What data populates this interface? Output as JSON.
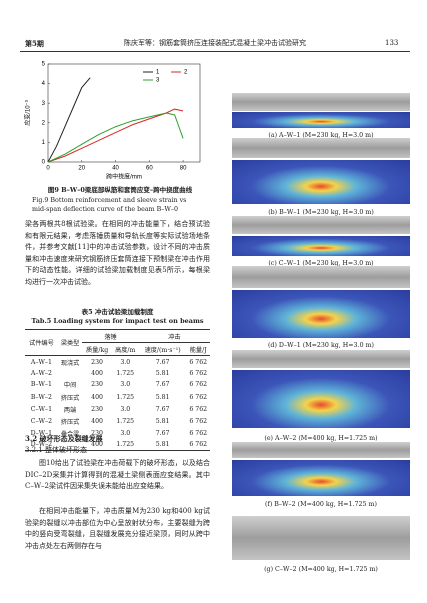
{
  "header": {
    "issue": "第5期",
    "running_title": "陈庆军等：钢筋套筒挤压连接装配式混凝土梁冲击试验研究",
    "page": "133"
  },
  "figure9": {
    "chart_data": {
      "type": "line",
      "xlabel": "跨中挠度/mm",
      "ylabel": "应变/10⁻³",
      "xlim": [
        0,
        90
      ],
      "xticks": [
        0,
        20,
        40,
        60,
        80
      ],
      "ylim": [
        0,
        5
      ],
      "yticks": [
        0,
        1,
        2,
        3,
        4,
        5
      ],
      "series": [
        {
          "name": "1",
          "color": "#222222",
          "x": [
            0,
            5,
            10,
            15,
            20,
            25
          ],
          "values": [
            0,
            0.8,
            1.8,
            2.8,
            3.8,
            4.3
          ]
        },
        {
          "name": "2",
          "color": "#d62728",
          "x": [
            0,
            10,
            20,
            30,
            40,
            50,
            60,
            70,
            75,
            80
          ],
          "values": [
            0,
            0.3,
            0.7,
            1.1,
            1.5,
            1.9,
            2.2,
            2.5,
            2.7,
            2.6
          ]
        },
        {
          "name": "3",
          "color": "#2ca02c",
          "x": [
            0,
            10,
            20,
            30,
            40,
            50,
            60,
            70,
            75,
            80
          ],
          "values": [
            0,
            0.4,
            0.9,
            1.4,
            1.8,
            2.1,
            2.3,
            2.5,
            2.4,
            1.2
          ]
        }
      ]
    },
    "caption_zh": "图9  B–W–0梁底部纵筋和套筒应变–跨中挠度曲线",
    "caption_en": "Fig.9  Bottom reinforcement and sleeve strain vs mid-span deflection curve of the beam B–W–0"
  },
  "paragraph1": "梁各两根共8根试验梁。在相同的冲击能量下，结合预试验和有限元结果，考虑落锤质量和导轨长度等实际试验场地条件，并参考文献[11]中的冲击试验参数，设计不同的冲击质量和冲击速度来研究钢筋挤压套筒连接下预制梁在冲击作用下的动态性能。详细的试验梁加载制度见表5所示，每根梁均进行一次冲击试验。",
  "table5": {
    "title_zh": "表5  冲击试验梁加载制度",
    "title_en": "Tab.5  Loading system for impact test on beams",
    "header": [
      "试件编号",
      "梁类型",
      "落锤",
      "冲击",
      "质量/kg",
      "高度/m",
      "速度/(m·s⁻¹)",
      "能量/J"
    ],
    "rows": [
      [
        "A–W–1",
        "现浇式",
        "230",
        "3.0",
        "7.67",
        "6 762"
      ],
      [
        "A–W–2",
        "",
        "400",
        "1.725",
        "5.81",
        "6 762"
      ],
      [
        "B–W–1",
        "中间",
        "230",
        "3.0",
        "7.67",
        "6 762"
      ],
      [
        "B–W–2",
        "挤压式",
        "400",
        "1.725",
        "5.81",
        "6 762"
      ],
      [
        "C–W–1",
        "两端",
        "230",
        "3.0",
        "7.67",
        "6 762"
      ],
      [
        "C–W–2",
        "挤压式",
        "400",
        "1.725",
        "5.81",
        "6 762"
      ],
      [
        "D–W–1",
        "叠合梁",
        "230",
        "3.0",
        "7.67",
        "6 762"
      ],
      [
        "D–W–2",
        "",
        "400",
        "1.725",
        "5.81",
        "6 762"
      ]
    ]
  },
  "section": "3.2  破坏形态及裂缝发展",
  "subsection": "3.2.1  整体破坏形态",
  "paragraph2": "图10给出了试验梁在冲击荷载下的破坏形态，以及结合DIC–2D采集并计算得到的混凝土梁侧表面应变结果。其中C–W–2梁试件因采集失误未能给出应变结果。",
  "paragraph3": "在相同冲击能量下，冲击质量M为230 kg和400 kg试验梁的裂缝以冲击部位为中心呈放射状分布，主要裂缝为跨中的竖向受弯裂缝，且裂缝发展充分接近梁顶，同时从跨中冲击点处左右两侧存在与",
  "figure10": {
    "panels": [
      "(a) A–W–1 (M=230 kg, H=3.0 m)",
      "(b) B–W–1 (M=230 kg, H=3.0 m)",
      "(c) C–W–1 (M=230 kg, H=3.0 m)",
      "(d) D–W–1 (M=230 kg, H=3.0 m)",
      "(e) A–W–2 (M=400 kg, H=1.725 m)",
      "(f) B–W–2 (M=400 kg, H=1.725 m)",
      "(g) C–W–2 (M=400 kg, H=1.725 m)"
    ]
  }
}
